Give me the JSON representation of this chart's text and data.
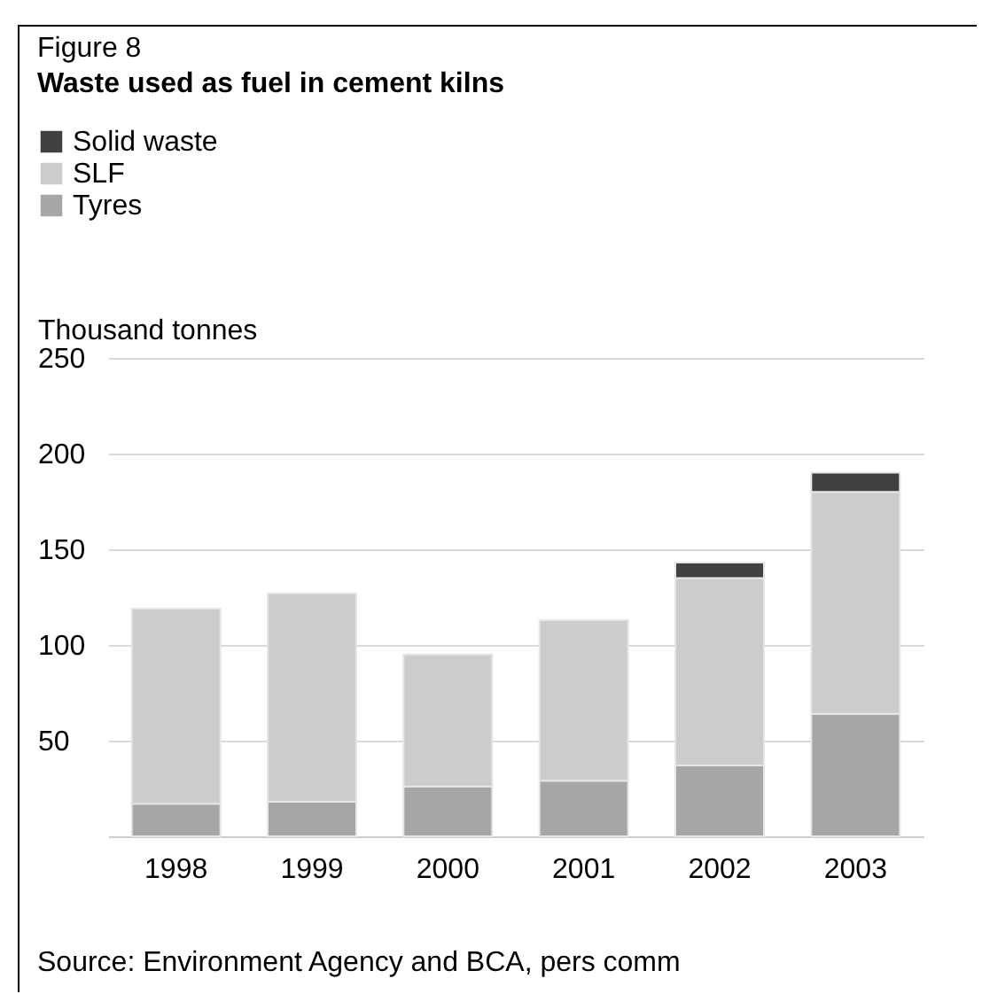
{
  "chart_data": {
    "type": "bar",
    "stacked": true,
    "title": "Waste used as fuel in cement kilns",
    "ylabel": "Thousand tonnes",
    "annotations": [
      "Figure 8",
      "Source: Environment Agency and BCA, pers comm"
    ],
    "categories": [
      "1998",
      "1999",
      "2000",
      "2001",
      "2002",
      "2003"
    ],
    "series": [
      {
        "name": "Tyres",
        "color": "#a6a6a6",
        "values": [
          17,
          18,
          26,
          29,
          37,
          64
        ]
      },
      {
        "name": "SLF",
        "color": "#cccccc",
        "values": [
          102,
          109,
          69,
          84,
          98,
          116
        ]
      },
      {
        "name": "Solid waste",
        "color": "#404040",
        "values": [
          null,
          null,
          null,
          null,
          8,
          10
        ]
      }
    ],
    "ylim": [
      0,
      250
    ],
    "yticks": [
      50,
      100,
      150,
      200,
      250
    ],
    "grid": "y",
    "legend": "top left"
  }
}
